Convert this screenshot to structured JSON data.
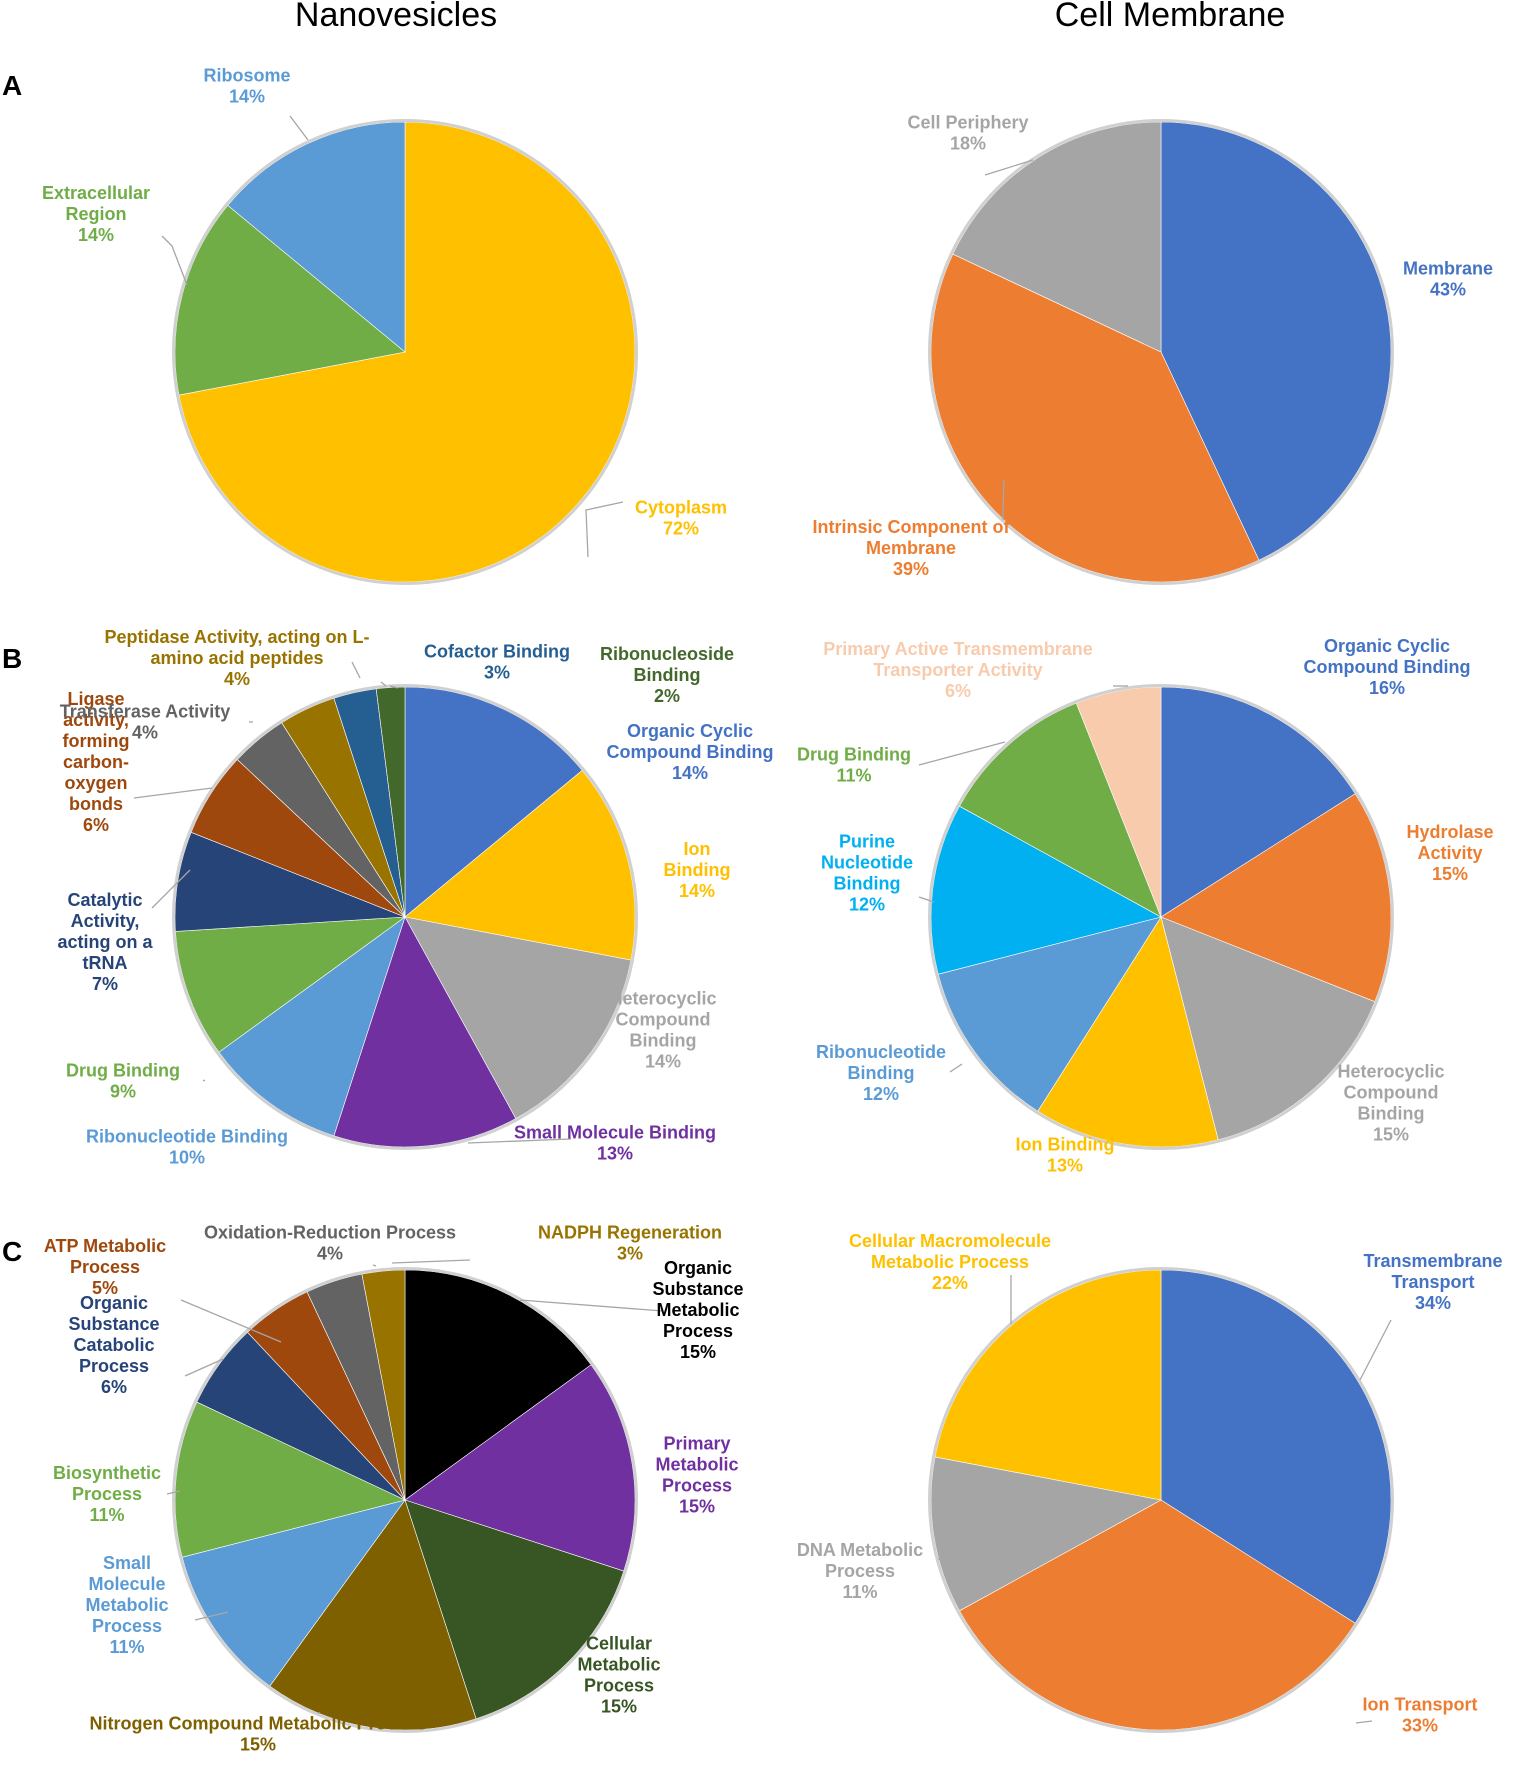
{
  "figure": {
    "column_titles": [
      "Nanovesicles",
      "Cell Membrane"
    ],
    "panel_letters": [
      "A",
      "B",
      "C"
    ]
  },
  "chart_data": [
    {
      "type": "pie",
      "panel": "A",
      "column": "Nanovesicles",
      "slices": [
        {
          "label": "Cytoplasm",
          "value": 72,
          "color": "#FFC000"
        },
        {
          "label": "Extracellular Region",
          "value": 14,
          "color": "#70AD47"
        },
        {
          "label": "Ribosome",
          "value": 14,
          "color": "#5B9BD5"
        }
      ]
    },
    {
      "type": "pie",
      "panel": "A",
      "column": "Cell Membrane",
      "slices": [
        {
          "label": "Membrane",
          "value": 43,
          "color": "#4472C4"
        },
        {
          "label": "Intrinsic Component of Membrane",
          "value": 39,
          "color": "#ED7D31"
        },
        {
          "label": "Cell Periphery",
          "value": 18,
          "color": "#A5A5A5"
        }
      ]
    },
    {
      "type": "pie",
      "panel": "B",
      "column": "Nanovesicles",
      "slices": [
        {
          "label": "Organic Cyclic Compound Binding",
          "value": 14,
          "color": "#4472C4"
        },
        {
          "label": "Ion Binding",
          "value": 14,
          "color": "#FFC000"
        },
        {
          "label": "Heterocyclic Compound Binding",
          "value": 14,
          "color": "#A5A5A5"
        },
        {
          "label": "Small Molecule Binding",
          "value": 13,
          "color": "#7030A0"
        },
        {
          "label": "Ribonucleotide Binding",
          "value": 10,
          "color": "#5B9BD5"
        },
        {
          "label": "Drug Binding",
          "value": 9,
          "color": "#70AD47"
        },
        {
          "label": "Catalytic Activity, acting on a tRNA",
          "value": 7,
          "color": "#264478"
        },
        {
          "label": "Ligase activity, forming carbon-oxygen bonds",
          "value": 6,
          "color": "#9E480E"
        },
        {
          "label": "Transferase Activity",
          "value": 4,
          "color": "#636363"
        },
        {
          "label": "Peptidase Activity, acting on L-amino acid peptides",
          "value": 4,
          "color": "#997300"
        },
        {
          "label": "Cofactor Binding",
          "value": 3,
          "color": "#255E91"
        },
        {
          "label": "Ribonucleoside Binding",
          "value": 2,
          "color": "#43682B"
        }
      ]
    },
    {
      "type": "pie",
      "panel": "B",
      "column": "Cell Membrane",
      "slices": [
        {
          "label": "Organic Cyclic Compound Binding",
          "value": 16,
          "color": "#4472C4"
        },
        {
          "label": "Hydrolase Activity",
          "value": 15,
          "color": "#ED7D31"
        },
        {
          "label": "Heterocyclic Compound Binding",
          "value": 15,
          "color": "#A5A5A5"
        },
        {
          "label": "Ion Binding",
          "value": 13,
          "color": "#FFC000"
        },
        {
          "label": "Ribonucleotide Binding",
          "value": 12,
          "color": "#5B9BD5"
        },
        {
          "label": "Purine Nucleotide Binding",
          "value": 12,
          "color": "#00B0F0"
        },
        {
          "label": "Drug Binding",
          "value": 11,
          "color": "#70AD47"
        },
        {
          "label": "Primary Active Transmembrane Transporter Activity",
          "value": 6,
          "color": "#F8CBAD"
        }
      ]
    },
    {
      "type": "pie",
      "panel": "C",
      "column": "Nanovesicles",
      "slices": [
        {
          "label": "Organic Substance Metabolic Process",
          "value": 15,
          "color": "#000000"
        },
        {
          "label": "Primary Metabolic Process",
          "value": 15,
          "color": "#7030A0"
        },
        {
          "label": "Cellular Metabolic Process",
          "value": 15,
          "color": "#375623"
        },
        {
          "label": "Nitrogen Compound Metabolic Process",
          "value": 15,
          "color": "#7F6000"
        },
        {
          "label": "Small Molecule Metabolic Process",
          "value": 11,
          "color": "#5B9BD5"
        },
        {
          "label": "Biosynthetic Process",
          "value": 11,
          "color": "#70AD47"
        },
        {
          "label": "Organic Substance Catabolic Process",
          "value": 6,
          "color": "#264478"
        },
        {
          "label": "ATP Metabolic Process",
          "value": 5,
          "color": "#9E480E"
        },
        {
          "label": "Oxidation-Reduction Process",
          "value": 4,
          "color": "#636363"
        },
        {
          "label": "NADPH Regeneration",
          "value": 3,
          "color": "#997300"
        }
      ]
    },
    {
      "type": "pie",
      "panel": "C",
      "column": "Cell Membrane",
      "slices": [
        {
          "label": "Transmembrane Transport",
          "value": 34,
          "color": "#4472C4"
        },
        {
          "label": "Ion Transport",
          "value": 33,
          "color": "#ED7D31"
        },
        {
          "label": "DNA Metabolic Process",
          "value": 11,
          "color": "#A5A5A5"
        },
        {
          "label": "Cellular Macromolecule Metabolic Process",
          "value": 22,
          "color": "#FFC000"
        }
      ]
    }
  ],
  "data_labels": [
    [
      {
        "lines": [
          "Cytoplasm"
        ],
        "pct": "72%",
        "color": "#FFC000"
      },
      {
        "lines": [
          "Extracellular",
          "Region"
        ],
        "pct": "14%",
        "color": "#70AD47"
      },
      {
        "lines": [
          "Ribosome"
        ],
        "pct": "14%",
        "color": "#5B9BD5"
      }
    ],
    [
      {
        "lines": [
          "Membrane"
        ],
        "pct": "43%",
        "color": "#4472C4"
      },
      {
        "lines": [
          "Intrinsic Component of",
          "Membrane"
        ],
        "pct": "39%",
        "color": "#ED7D31"
      },
      {
        "lines": [
          "Cell Periphery"
        ],
        "pct": "18%",
        "color": "#A5A5A5"
      }
    ],
    [
      {
        "lines": [
          "Organic Cyclic",
          "Compound Binding"
        ],
        "pct": "14%",
        "color": "#4472C4"
      },
      {
        "lines": [
          "Ion",
          "Binding"
        ],
        "pct": "14%",
        "color": "#FFC000"
      },
      {
        "lines": [
          "Heterocyclic",
          "Compound",
          "Binding"
        ],
        "pct": "14%",
        "color": "#A5A5A5"
      },
      {
        "lines": [
          "Small Molecule Binding"
        ],
        "pct": "13%",
        "color": "#7030A0"
      },
      {
        "lines": [
          "Ribonucleotide Binding"
        ],
        "pct": "10%",
        "color": "#5B9BD5"
      },
      {
        "lines": [
          "Drug Binding"
        ],
        "pct": "9%",
        "color": "#70AD47"
      },
      {
        "lines": [
          "Catalytic",
          "Activity,",
          "acting on a",
          "tRNA"
        ],
        "pct": "7%",
        "color": "#264478"
      },
      {
        "lines": [
          "Ligase",
          "activity,",
          "forming",
          "carbon-",
          "oxygen",
          "bonds"
        ],
        "pct": "6%",
        "color": "#9E480E"
      },
      {
        "lines": [
          "Transferase Activity"
        ],
        "pct": "4%",
        "color": "#636363"
      },
      {
        "lines": [
          "Peptidase Activity, acting on L-",
          "amino acid peptides"
        ],
        "pct": "4%",
        "color": "#997300"
      },
      {
        "lines": [
          "Cofactor Binding"
        ],
        "pct": "3%",
        "color": "#255E91"
      },
      {
        "lines": [
          "Ribonucleoside",
          "Binding"
        ],
        "pct": "2%",
        "color": "#43682B"
      }
    ],
    [
      {
        "lines": [
          "Organic Cyclic",
          "Compound Binding"
        ],
        "pct": "16%",
        "color": "#4472C4"
      },
      {
        "lines": [
          "Hydrolase",
          "Activity"
        ],
        "pct": "15%",
        "color": "#ED7D31"
      },
      {
        "lines": [
          "Heterocyclic",
          "Compound",
          "Binding"
        ],
        "pct": "15%",
        "color": "#A5A5A5"
      },
      {
        "lines": [
          "Ion Binding"
        ],
        "pct": "13%",
        "color": "#FFC000"
      },
      {
        "lines": [
          "Ribonucleotide",
          "Binding"
        ],
        "pct": "12%",
        "color": "#5B9BD5"
      },
      {
        "lines": [
          "Purine",
          "Nucleotide",
          "Binding"
        ],
        "pct": "12%",
        "color": "#00B0F0"
      },
      {
        "lines": [
          "Drug Binding"
        ],
        "pct": "11%",
        "color": "#70AD47"
      },
      {
        "lines": [
          "Primary Active Transmembrane",
          "Transporter Activity"
        ],
        "pct": "6%",
        "color": "#F8CBAD"
      }
    ],
    [
      {
        "lines": [
          "Organic",
          "Substance",
          "Metabolic",
          "Process"
        ],
        "pct": "15%",
        "color": "#000000"
      },
      {
        "lines": [
          "Primary",
          "Metabolic",
          "Process"
        ],
        "pct": "15%",
        "color": "#7030A0"
      },
      {
        "lines": [
          "Cellular",
          "Metabolic",
          "Process"
        ],
        "pct": "15%",
        "color": "#375623"
      },
      {
        "lines": [
          "Nitrogen Compound Metabolic Process"
        ],
        "pct": "15%",
        "color": "#7F6000"
      },
      {
        "lines": [
          "Small",
          "Molecule",
          "Metabolic",
          "Process"
        ],
        "pct": "11%",
        "color": "#5B9BD5"
      },
      {
        "lines": [
          "Biosynthetic",
          "Process"
        ],
        "pct": "11%",
        "color": "#70AD47"
      },
      {
        "lines": [
          "Organic",
          "Substance",
          "Catabolic",
          "Process"
        ],
        "pct": "6%",
        "color": "#264478"
      },
      {
        "lines": [
          "ATP Metabolic",
          "Process"
        ],
        "pct": "5%",
        "color": "#9E480E"
      },
      {
        "lines": [
          "Oxidation-Reduction Process"
        ],
        "pct": "4%",
        "color": "#636363"
      },
      {
        "lines": [
          "NADPH Regeneration"
        ],
        "pct": "3%",
        "color": "#997300"
      }
    ],
    [
      {
        "lines": [
          "Transmembrane",
          "Transport"
        ],
        "pct": "34%",
        "color": "#4472C4"
      },
      {
        "lines": [
          "Ion Transport"
        ],
        "pct": "33%",
        "color": "#ED7D31"
      },
      {
        "lines": [
          "DNA Metabolic",
          "Process"
        ],
        "pct": "11%",
        "color": "#A5A5A5"
      },
      {
        "lines": [
          "Cellular Macromolecule",
          "Metabolic Process"
        ],
        "pct": "22%",
        "color": "#FFC000"
      }
    ]
  ]
}
